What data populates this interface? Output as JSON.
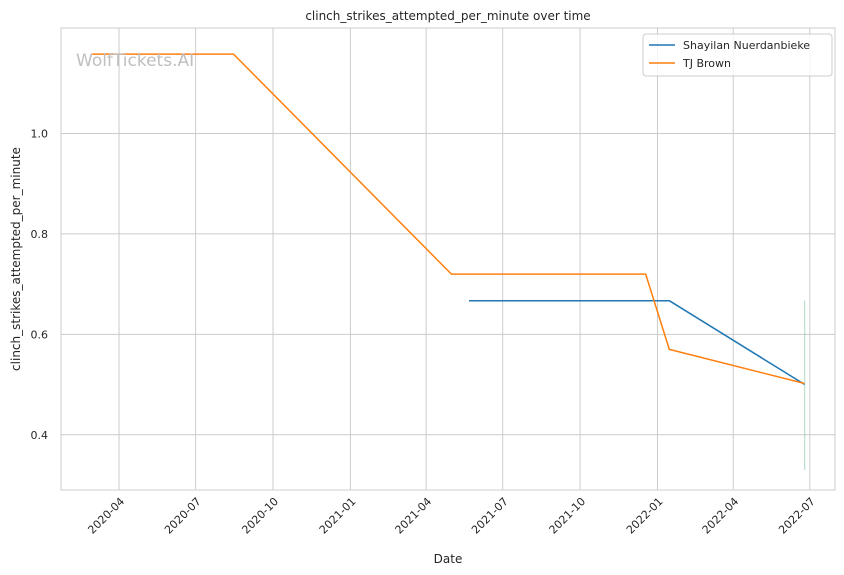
{
  "chart_data": {
    "type": "line",
    "title": "clinch_strikes_attempted_per_minute over time",
    "xlabel": "Date",
    "ylabel": "clinch_strikes_attempted_per_minute",
    "watermark": "WolfTickets.AI",
    "x_ticks": [
      "2020-04",
      "2020-07",
      "2020-10",
      "2021-01",
      "2021-04",
      "2021-07",
      "2021-10",
      "2022-01",
      "2022-04",
      "2022-07"
    ],
    "y_ticks": [
      "0.4",
      "0.6",
      "0.8",
      "1.0"
    ],
    "xlim": [
      "2020-01-23",
      "2022-07-31"
    ],
    "ylim": [
      0.29,
      1.21
    ],
    "grid": true,
    "legend_position": "top-right",
    "series": [
      {
        "name": "Shayilan Nuerdanbieke",
        "color": "#1f77b4",
        "points": [
          {
            "x": "2021-05-22",
            "y": 0.667
          },
          {
            "x": "2022-01-15",
            "y": 0.667
          },
          {
            "x": "2022-06-25",
            "y": 0.5
          }
        ]
      },
      {
        "name": "TJ Brown",
        "color": "#ff7f0e",
        "points": [
          {
            "x": "2020-02-29",
            "y": 1.158
          },
          {
            "x": "2020-08-15",
            "y": 1.158
          },
          {
            "x": "2021-05-01",
            "y": 0.72
          },
          {
            "x": "2021-12-18",
            "y": 0.72
          },
          {
            "x": "2022-01-15",
            "y": 0.57
          },
          {
            "x": "2022-06-25",
            "y": 0.502
          }
        ]
      }
    ],
    "vertical_marker": {
      "x": "2022-06-25",
      "y_range": [
        0.33,
        0.667
      ],
      "color": "#8ec7a8"
    }
  }
}
